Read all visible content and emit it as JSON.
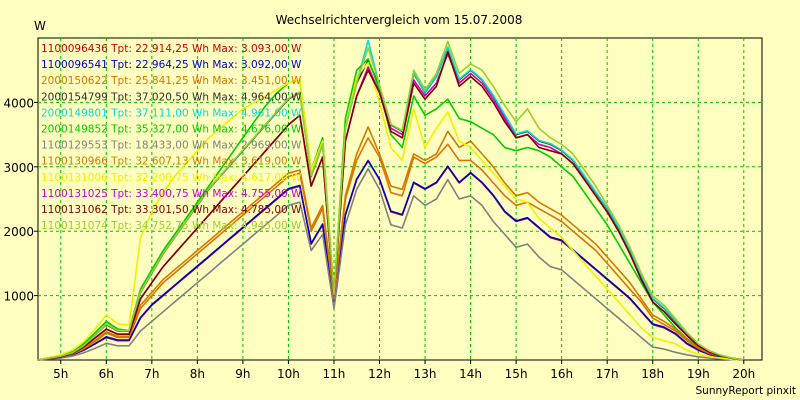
{
  "chart_data": {
    "type": "line",
    "title": "Wechselrichtervergleich vom 15.07.2008",
    "ylabel": "W",
    "footer": "SunnyReport pinxit",
    "ylim": [
      0,
      5000
    ],
    "yticks": [
      1000,
      2000,
      3000,
      4000
    ],
    "x": [
      4.5,
      4.75,
      5,
      5.25,
      5.5,
      5.75,
      6,
      6.25,
      6.5,
      6.75,
      7,
      7.25,
      7.5,
      7.75,
      8,
      8.25,
      8.5,
      8.75,
      9,
      9.25,
      9.5,
      9.75,
      10,
      10.25,
      10.5,
      10.75,
      11,
      11.25,
      11.5,
      11.75,
      12,
      12.25,
      12.5,
      12.75,
      13,
      13.25,
      13.5,
      13.75,
      14,
      14.25,
      14.5,
      14.75,
      15,
      15.25,
      15.5,
      15.75,
      16,
      16.25,
      16.5,
      16.75,
      17,
      17.25,
      17.5,
      17.75,
      18,
      18.25,
      18.5,
      18.75,
      19,
      19.25,
      19.5,
      19.75,
      20
    ],
    "xlim": [
      4.5,
      20.4
    ],
    "xticks": [
      5,
      6,
      7,
      8,
      9,
      10,
      11,
      12,
      13,
      14,
      15,
      16,
      17,
      18,
      19,
      20
    ],
    "xtick_labels": [
      "5h",
      "6h",
      "7h",
      "8h",
      "9h",
      "10h",
      "11h",
      "12h",
      "13h",
      "14h",
      "15h",
      "16h",
      "17h",
      "18h",
      "19h",
      "20h"
    ],
    "grid": true,
    "legend_position": "top-left",
    "series": [
      {
        "name": "1100096436",
        "text": "1100096436 Tpt: 22.914,25 Wh Max: 3.093,00 W",
        "color": "#cc0000",
        "values": [
          0,
          20,
          40,
          80,
          150,
          250,
          350,
          300,
          300,
          650,
          850,
          1000,
          1150,
          1300,
          1450,
          1600,
          1750,
          1900,
          2050,
          2200,
          2350,
          2500,
          2650,
          2700,
          1800,
          2100,
          850,
          2250,
          2800,
          3100,
          2800,
          2300,
          2250,
          2750,
          2650,
          2750,
          3000,
          2750,
          2900,
          2750,
          2550,
          2300,
          2150,
          2200,
          2050,
          1900,
          1850,
          1700,
          1550,
          1400,
          1250,
          1100,
          950,
          750,
          550,
          500,
          400,
          250,
          150,
          80,
          50,
          20,
          0
        ]
      },
      {
        "name": "1100096541",
        "text": "1100096541 Tpt: 22.964,25 Wh Max: 3.092,00 W",
        "color": "#0000cc",
        "values": [
          0,
          20,
          40,
          80,
          150,
          250,
          360,
          310,
          310,
          660,
          860,
          1010,
          1160,
          1310,
          1460,
          1610,
          1760,
          1910,
          2060,
          2210,
          2360,
          2510,
          2660,
          2710,
          1810,
          2110,
          860,
          2260,
          2810,
          3092,
          2810,
          2310,
          2260,
          2760,
          2660,
          2760,
          3010,
          2760,
          2910,
          2760,
          2560,
          2310,
          2160,
          2210,
          2060,
          1910,
          1860,
          1710,
          1560,
          1410,
          1260,
          1110,
          960,
          760,
          560,
          510,
          410,
          260,
          160,
          90,
          50,
          20,
          0
        ]
      },
      {
        "name": "2000150622",
        "text": "2000150622 Tpt: 25.841,25 Wh Max: 3.451,00 W",
        "color": "#e07000",
        "values": [
          0,
          25,
          50,
          90,
          170,
          280,
          420,
          350,
          350,
          800,
          1000,
          1200,
          1350,
          1500,
          1650,
          1800,
          1950,
          2100,
          2250,
          2400,
          2550,
          2700,
          2850,
          2900,
          2000,
          2350,
          950,
          2500,
          3100,
          3450,
          3150,
          2600,
          2550,
          3150,
          3050,
          3150,
          3350,
          3100,
          3100,
          2950,
          2750,
          2550,
          2400,
          2450,
          2350,
          2250,
          2150,
          2000,
          1850,
          1700,
          1500,
          1300,
          1100,
          900,
          650,
          550,
          450,
          300,
          180,
          100,
          60,
          25,
          0
        ]
      },
      {
        "name": "2000154799",
        "text": "2000154799 Tpt: 37.020,50 Wh Max: 4.964,00 W",
        "color": "#303030",
        "values": [
          0,
          30,
          60,
          110,
          220,
          380,
          550,
          450,
          450,
          1050,
          1350,
          1650,
          1900,
          2150,
          2400,
          2650,
          2850,
          3050,
          3250,
          3450,
          3650,
          3850,
          4050,
          4150,
          2850,
          3350,
          1000,
          3600,
          4300,
          4650,
          4250,
          3650,
          3550,
          4450,
          4150,
          4400,
          4850,
          4350,
          4500,
          4350,
          4100,
          3800,
          3500,
          3550,
          3400,
          3350,
          3250,
          3100,
          2850,
          2600,
          2350,
          2050,
          1700,
          1300,
          950,
          800,
          600,
          400,
          230,
          130,
          70,
          30,
          0
        ]
      },
      {
        "name": "2000149801",
        "text": "2000149801 Tpt: 37.111,00 Wh Max: 4.961,00 W",
        "color": "#00dddd",
        "values": [
          0,
          30,
          60,
          110,
          220,
          380,
          560,
          460,
          460,
          1060,
          1360,
          1660,
          1910,
          2160,
          2410,
          2660,
          2860,
          3060,
          3260,
          3460,
          3660,
          3860,
          4060,
          4160,
          2860,
          3360,
          1010,
          3610,
          4310,
          4961,
          4260,
          3660,
          3560,
          4460,
          4160,
          4410,
          4860,
          4360,
          4510,
          4360,
          4110,
          3810,
          3510,
          3560,
          3410,
          3360,
          3260,
          3110,
          2860,
          2610,
          2360,
          2060,
          1710,
          1310,
          960,
          810,
          610,
          410,
          240,
          140,
          75,
          30,
          0
        ]
      },
      {
        "name": "2000149852",
        "text": "2000149852 Tpt: 35.327,00 Wh Max: 4.676,00 W",
        "color": "#00cc00",
        "values": [
          0,
          35,
          70,
          130,
          250,
          420,
          600,
          480,
          460,
          1100,
          1400,
          1700,
          1950,
          2200,
          2450,
          2700,
          2950,
          3200,
          3450,
          3700,
          3950,
          4150,
          4300,
          4350,
          2950,
          3450,
          1050,
          3750,
          4500,
          4676,
          4200,
          3500,
          3300,
          4100,
          3800,
          3900,
          4050,
          3750,
          3700,
          3600,
          3500,
          3300,
          3250,
          3300,
          3250,
          3150,
          3000,
          2850,
          2600,
          2350,
          2100,
          1800,
          1500,
          1200,
          900,
          700,
          500,
          330,
          200,
          110,
          60,
          25,
          0
        ]
      },
      {
        "name": "1100129553",
        "text": "1100129553 Tpt: 18.433,00 Wh Max: 2.969,00 W",
        "color": "#808080",
        "values": [
          0,
          15,
          30,
          60,
          110,
          180,
          260,
          220,
          220,
          450,
          600,
          750,
          900,
          1050,
          1200,
          1350,
          1500,
          1650,
          1800,
          1950,
          2100,
          2250,
          2400,
          2450,
          1700,
          1950,
          800,
          2100,
          2650,
          2969,
          2650,
          2100,
          2050,
          2550,
          2400,
          2500,
          2800,
          2500,
          2550,
          2400,
          2150,
          1950,
          1750,
          1800,
          1600,
          1450,
          1400,
          1250,
          1100,
          950,
          800,
          650,
          500,
          350,
          200,
          170,
          120,
          80,
          50,
          30,
          15,
          5,
          0
        ]
      },
      {
        "name": "1100130966",
        "text": "1100130966 Tpt: 32.607,13 Wh Max: 3.619,00 W",
        "color": "#d07a00",
        "values": [
          0,
          25,
          50,
          95,
          180,
          300,
          440,
          370,
          370,
          850,
          1050,
          1250,
          1400,
          1550,
          1700,
          1850,
          2000,
          2150,
          2300,
          2450,
          2600,
          2750,
          2900,
          2950,
          2050,
          2400,
          980,
          2550,
          3200,
          3619,
          3200,
          2700,
          2650,
          3200,
          3100,
          3200,
          3550,
          3300,
          3400,
          3200,
          3000,
          2750,
          2550,
          2600,
          2450,
          2350,
          2250,
          2100,
          1950,
          1800,
          1600,
          1400,
          1200,
          950,
          700,
          600,
          480,
          320,
          190,
          110,
          65,
          25,
          0
        ]
      },
      {
        "name": "1100131006",
        "text": "1100131006 Tpt: 32.200,75 Wh Max: 4.617,00 W",
        "color": "#f0f000",
        "values": [
          0,
          40,
          80,
          150,
          280,
          480,
          700,
          560,
          540,
          1900,
          2300,
          2600,
          2850,
          3050,
          3250,
          3450,
          3600,
          3750,
          3900,
          4000,
          4100,
          4200,
          4300,
          4350,
          2950,
          3400,
          1050,
          3600,
          4400,
          4617,
          4000,
          3300,
          3100,
          3900,
          3300,
          3600,
          3850,
          3400,
          3300,
          3100,
          2900,
          2700,
          2500,
          2450,
          2200,
          2050,
          1900,
          1700,
          1500,
          1300,
          1100,
          900,
          700,
          500,
          350,
          300,
          250,
          150,
          90,
          50,
          30,
          10,
          0
        ]
      },
      {
        "name": "1100131025",
        "text": "1100131025 Tpt: 33.400,75 Wh Max: 4.755,00 W",
        "color": "#cc00cc",
        "values": [
          0,
          25,
          50,
          100,
          200,
          340,
          480,
          400,
          400,
          950,
          1200,
          1450,
          1650,
          1850,
          2050,
          2250,
          2450,
          2650,
          2850,
          3050,
          3250,
          3450,
          3650,
          3800,
          2700,
          3150,
          1000,
          3400,
          4100,
          4550,
          4150,
          3600,
          3500,
          4350,
          4100,
          4300,
          4755,
          4300,
          4450,
          4300,
          4050,
          3750,
          3450,
          3500,
          3350,
          3300,
          3200,
          3050,
          2800,
          2550,
          2300,
          2000,
          1650,
          1250,
          900,
          750,
          560,
          380,
          220,
          120,
          65,
          25,
          0
        ]
      },
      {
        "name": "1100131062",
        "text": "1100131062 Tpt: 33.301,50 Wh Max: 4.785,00 W",
        "color": "#800000",
        "values": [
          0,
          25,
          50,
          100,
          200,
          340,
          480,
          400,
          400,
          950,
          1200,
          1450,
          1650,
          1850,
          2050,
          2250,
          2450,
          2650,
          2850,
          3050,
          3250,
          3450,
          3650,
          3800,
          2700,
          3150,
          1000,
          3400,
          4100,
          4500,
          4150,
          3550,
          3450,
          4300,
          4050,
          4250,
          4785,
          4250,
          4400,
          4250,
          4000,
          3700,
          3450,
          3500,
          3300,
          3250,
          3200,
          3050,
          2800,
          2550,
          2300,
          2000,
          1650,
          1250,
          900,
          750,
          560,
          380,
          220,
          120,
          65,
          25,
          0
        ]
      },
      {
        "name": "1100131074",
        "text": "1100131074 Tpt: 34.752,75 Wh Max: 4.945,00 W",
        "color": "#9acd32",
        "values": [
          0,
          30,
          60,
          110,
          220,
          380,
          560,
          460,
          460,
          1060,
          1360,
          1660,
          1910,
          2160,
          2410,
          2660,
          2860,
          3060,
          3260,
          3460,
          3660,
          3860,
          4060,
          4160,
          2860,
          3360,
          1010,
          3610,
          4310,
          4850,
          4260,
          3660,
          3560,
          4500,
          4200,
          4450,
          4945,
          4450,
          4600,
          4500,
          4250,
          3950,
          3700,
          3900,
          3600,
          3450,
          3350,
          3200,
          2950,
          2700,
          2400,
          2100,
          1750,
          1350,
          1000,
          850,
          640,
          430,
          250,
          140,
          75,
          30,
          0
        ]
      }
    ]
  }
}
